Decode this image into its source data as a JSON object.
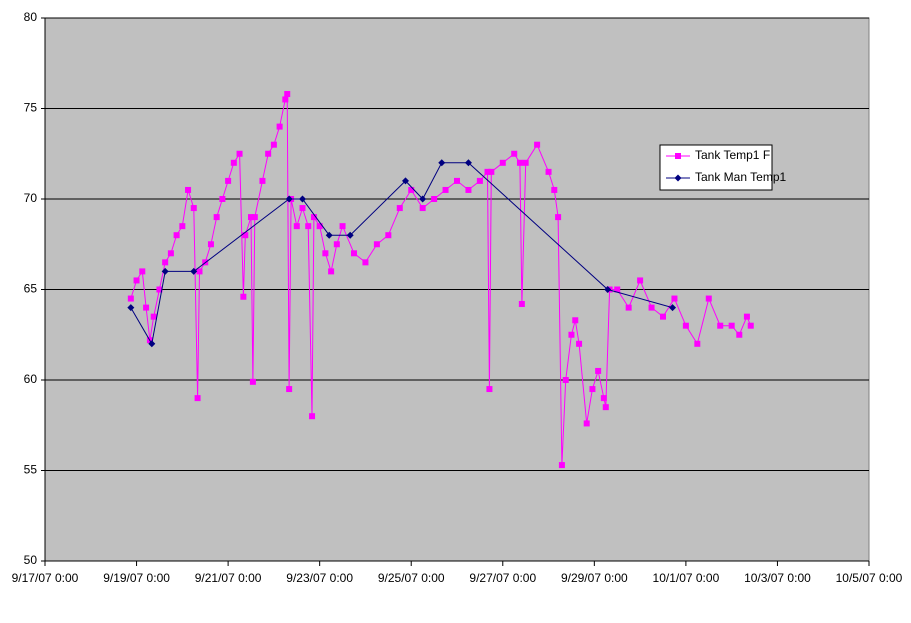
{
  "chart_data": {
    "type": "line",
    "ylim": [
      50,
      80
    ],
    "yticks": [
      50,
      55,
      60,
      65,
      70,
      75,
      80
    ],
    "xlim": [
      "9/17/07 0:00",
      "10/5/07 0:00"
    ],
    "xticks": [
      "9/17/07 0:00",
      "9/19/07 0:00",
      "9/21/07 0:00",
      "9/23/07 0:00",
      "9/25/07 0:00",
      "9/27/07 0:00",
      "9/29/07 0:00",
      "10/1/07 0:00",
      "10/3/07 0:00",
      "10/5/07 0:00"
    ],
    "grid": true,
    "background": "#c0c0c0",
    "legend": "right",
    "series": [
      {
        "name": "Tank Temp1 F",
        "color": "#ff00ff",
        "marker": "square",
        "x": [
          "9/18/07 21:00",
          "9/19/07 0:00",
          "9/19/07 3:00",
          "9/19/07 5:00",
          "9/19/07 7:00",
          "9/19/07 9:00",
          "9/19/07 12:00",
          "9/19/07 15:00",
          "9/19/07 18:00",
          "9/19/07 21:00",
          "9/20/07 0:00",
          "9/20/07 3:00",
          "9/20/07 6:00",
          "9/20/07 8:00",
          "9/20/07 9:00",
          "9/20/07 12:00",
          "9/20/07 15:00",
          "9/20/07 18:00",
          "9/20/07 21:00",
          "9/21/07 0:00",
          "9/21/07 3:00",
          "9/21/07 6:00",
          "9/21/07 8:00",
          "9/21/07 9:00",
          "9/21/07 12:00",
          "9/21/07 13:00",
          "9/21/07 14:00",
          "9/21/07 18:00",
          "9/21/07 21:00",
          "9/22/07 0:00",
          "9/22/07 3:00",
          "9/22/07 6:00",
          "9/22/07 7:00",
          "9/22/07 8:00",
          "9/22/07 9:00",
          "9/22/07 12:00",
          "9/22/07 15:00",
          "9/22/07 18:00",
          "9/22/07 20:00",
          "9/22/07 21:00",
          "9/23/07 0:00",
          "9/23/07 3:00",
          "9/23/07 6:00",
          "9/23/07 9:00",
          "9/23/07 12:00",
          "9/23/07 18:00",
          "9/24/07 0:00",
          "9/24/07 6:00",
          "9/24/07 12:00",
          "9/24/07 18:00",
          "9/25/07 0:00",
          "9/25/07 6:00",
          "9/25/07 12:00",
          "9/25/07 18:00",
          "9/26/07 0:00",
          "9/26/07 6:00",
          "9/26/07 12:00",
          "9/26/07 16:00",
          "9/26/07 17:00",
          "9/26/07 18:00",
          "9/27/07 0:00",
          "9/27/07 6:00",
          "9/27/07 9:00",
          "9/27/07 10:00",
          "9/27/07 12:00",
          "9/27/07 18:00",
          "9/28/07 0:00",
          "9/28/07 3:00",
          "9/28/07 5:00",
          "9/28/07 7:00",
          "9/28/07 9:00",
          "9/28/07 12:00",
          "9/28/07 14:00",
          "9/28/07 16:00",
          "9/28/07 20:00",
          "9/28/07 23:00",
          "9/29/07 2:00",
          "9/29/07 5:00",
          "9/29/07 6:00",
          "9/29/07 8:00",
          "9/29/07 12:00",
          "9/29/07 18:00",
          "9/30/07 0:00",
          "9/30/07 6:00",
          "9/30/07 12:00",
          "9/30/07 18:00",
          "10/1/07 0:00",
          "10/1/07 6:00",
          "10/1/07 12:00",
          "10/1/07 18:00",
          "10/2/07 0:00",
          "10/2/07 4:00",
          "10/2/07 8:00",
          "10/2/07 10:00"
        ],
        "values": [
          64.5,
          65.5,
          66,
          64,
          62.2,
          63.5,
          65,
          66.5,
          67,
          68,
          68.5,
          70.5,
          69.5,
          59,
          66,
          66.5,
          67.5,
          69,
          70,
          71,
          72,
          72.5,
          64.6,
          68,
          69,
          59.9,
          69,
          71,
          72.5,
          73,
          74,
          75.5,
          75.8,
          59.5,
          70,
          68.5,
          69.5,
          68.5,
          58,
          69,
          68.5,
          67,
          66,
          67.5,
          68.5,
          67,
          66.5,
          67.5,
          68,
          69.5,
          70.5,
          69.5,
          70,
          70.5,
          71,
          70.5,
          71,
          71.5,
          59.5,
          71.5,
          72,
          72.5,
          72,
          64.2,
          72,
          73,
          71.5,
          70.5,
          69,
          55.3,
          60,
          62.5,
          63.3,
          62,
          57.6,
          59.5,
          60.5,
          59,
          58.5,
          65,
          65,
          64,
          65.5,
          64,
          63.5,
          64.5,
          63,
          62,
          64.5,
          63,
          63,
          62.5,
          63.5,
          63
        ]
      },
      {
        "name": "Tank Man Temp1",
        "color": "#000080",
        "marker": "diamond",
        "x": [
          "9/18/07 21:00",
          "9/19/07 8:00",
          "9/19/07 15:00",
          "9/20/07 6:00",
          "9/22/07 8:00",
          "9/22/07 15:00",
          "9/23/07 5:00",
          "9/23/07 16:00",
          "9/24/07 21:00",
          "9/25/07 6:00",
          "9/25/07 16:00",
          "9/26/07 6:00",
          "9/29/07 7:00",
          "9/30/07 17:00"
        ],
        "values": [
          64,
          62,
          66,
          66,
          70,
          70,
          68,
          68,
          71,
          70,
          72,
          72,
          65,
          64
        ]
      }
    ]
  }
}
